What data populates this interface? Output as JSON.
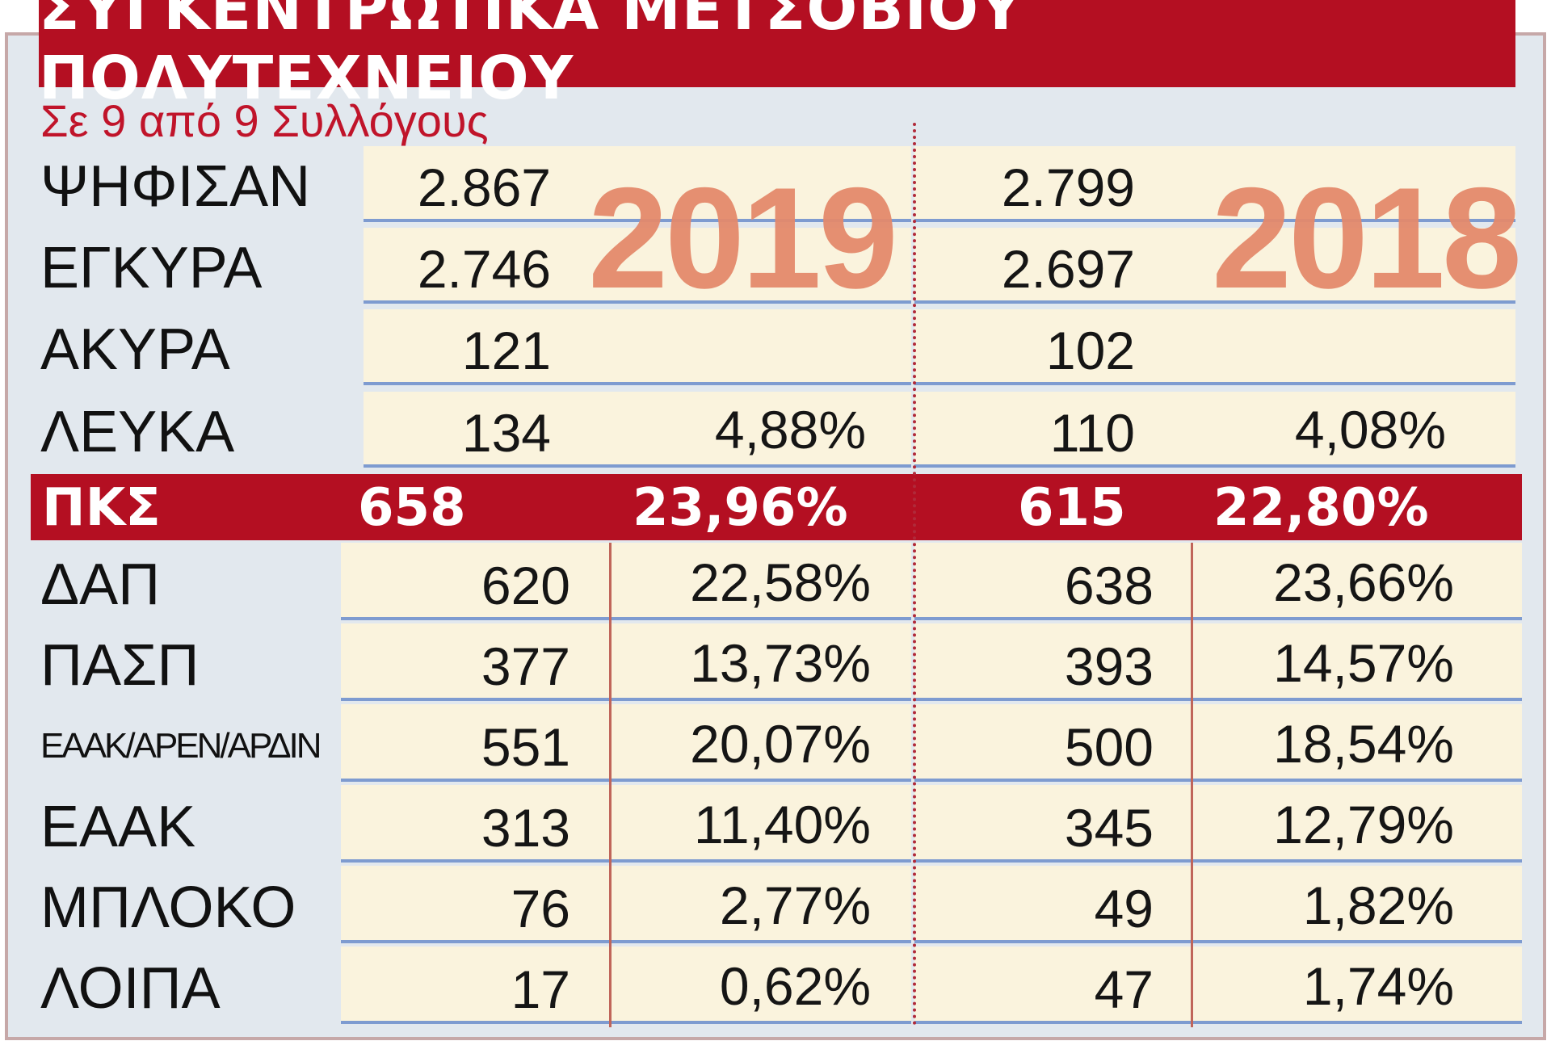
{
  "chart_data": {
    "type": "table",
    "title": "ΣΥΓΚΕΝΤΡΩΤΙΚΑ ΜΕΤΣΟΒΙΟΥ ΠΟΛΥΤΕΧΝΕΙΟΥ",
    "subtitle": "Σε 9 από 9 Συλλόγους",
    "years": [
      "2019",
      "2018"
    ],
    "summary": [
      {
        "label": "ΨΗΦΙΣΑΝ",
        "v2019": "2.867",
        "p2019": "",
        "v2018": "2.799",
        "p2018": ""
      },
      {
        "label": "ΕΓΚΥΡΑ",
        "v2019": "2.746",
        "p2019": "",
        "v2018": "2.697",
        "p2018": ""
      },
      {
        "label": "ΑΚΥΡΑ",
        "v2019": "121",
        "p2019": "",
        "v2018": "102",
        "p2018": ""
      },
      {
        "label": "ΛΕΥΚΑ",
        "v2019": "134",
        "p2019": "4,88%",
        "v2018": "110",
        "p2018": "4,08%"
      }
    ],
    "highlight": {
      "label": "ΠΚΣ",
      "v2019": "658",
      "p2019": "23,96%",
      "v2018": "615",
      "p2018": "22,80%"
    },
    "parties": [
      {
        "label": "ΔΑΠ",
        "v2019": "620",
        "p2019": "22,58%",
        "v2018": "638",
        "p2018": "23,66%"
      },
      {
        "label": "ΠΑΣΠ",
        "v2019": "377",
        "p2019": "13,73%",
        "v2018": "393",
        "p2018": "14,57%"
      },
      {
        "label": "ΕΑΑΚ/ΑΡΕΝ/ΑΡΔΙΝ",
        "v2019": "551",
        "p2019": "20,07%",
        "v2018": "500",
        "p2018": "18,54%"
      },
      {
        "label": "ΕΑΑΚ",
        "v2019": "313",
        "p2019": "11,40%",
        "v2018": "345",
        "p2018": "12,79%"
      },
      {
        "label": "ΜΠΛΟΚΟ",
        "v2019": "76",
        "p2019": "2,77%",
        "v2018": "49",
        "p2018": "1,82%"
      },
      {
        "label": "ΛΟΙΠΑ",
        "v2019": "17",
        "p2019": "0,62%",
        "v2018": "47",
        "p2018": "1,74%"
      }
    ],
    "colors": {
      "header": "#b40f22",
      "year_watermark": "#e48a6c",
      "cell": "#faf3dd",
      "row_line": "#7e9bd0",
      "background": "#e2e8ee",
      "subtitle": "#c0142a"
    }
  }
}
